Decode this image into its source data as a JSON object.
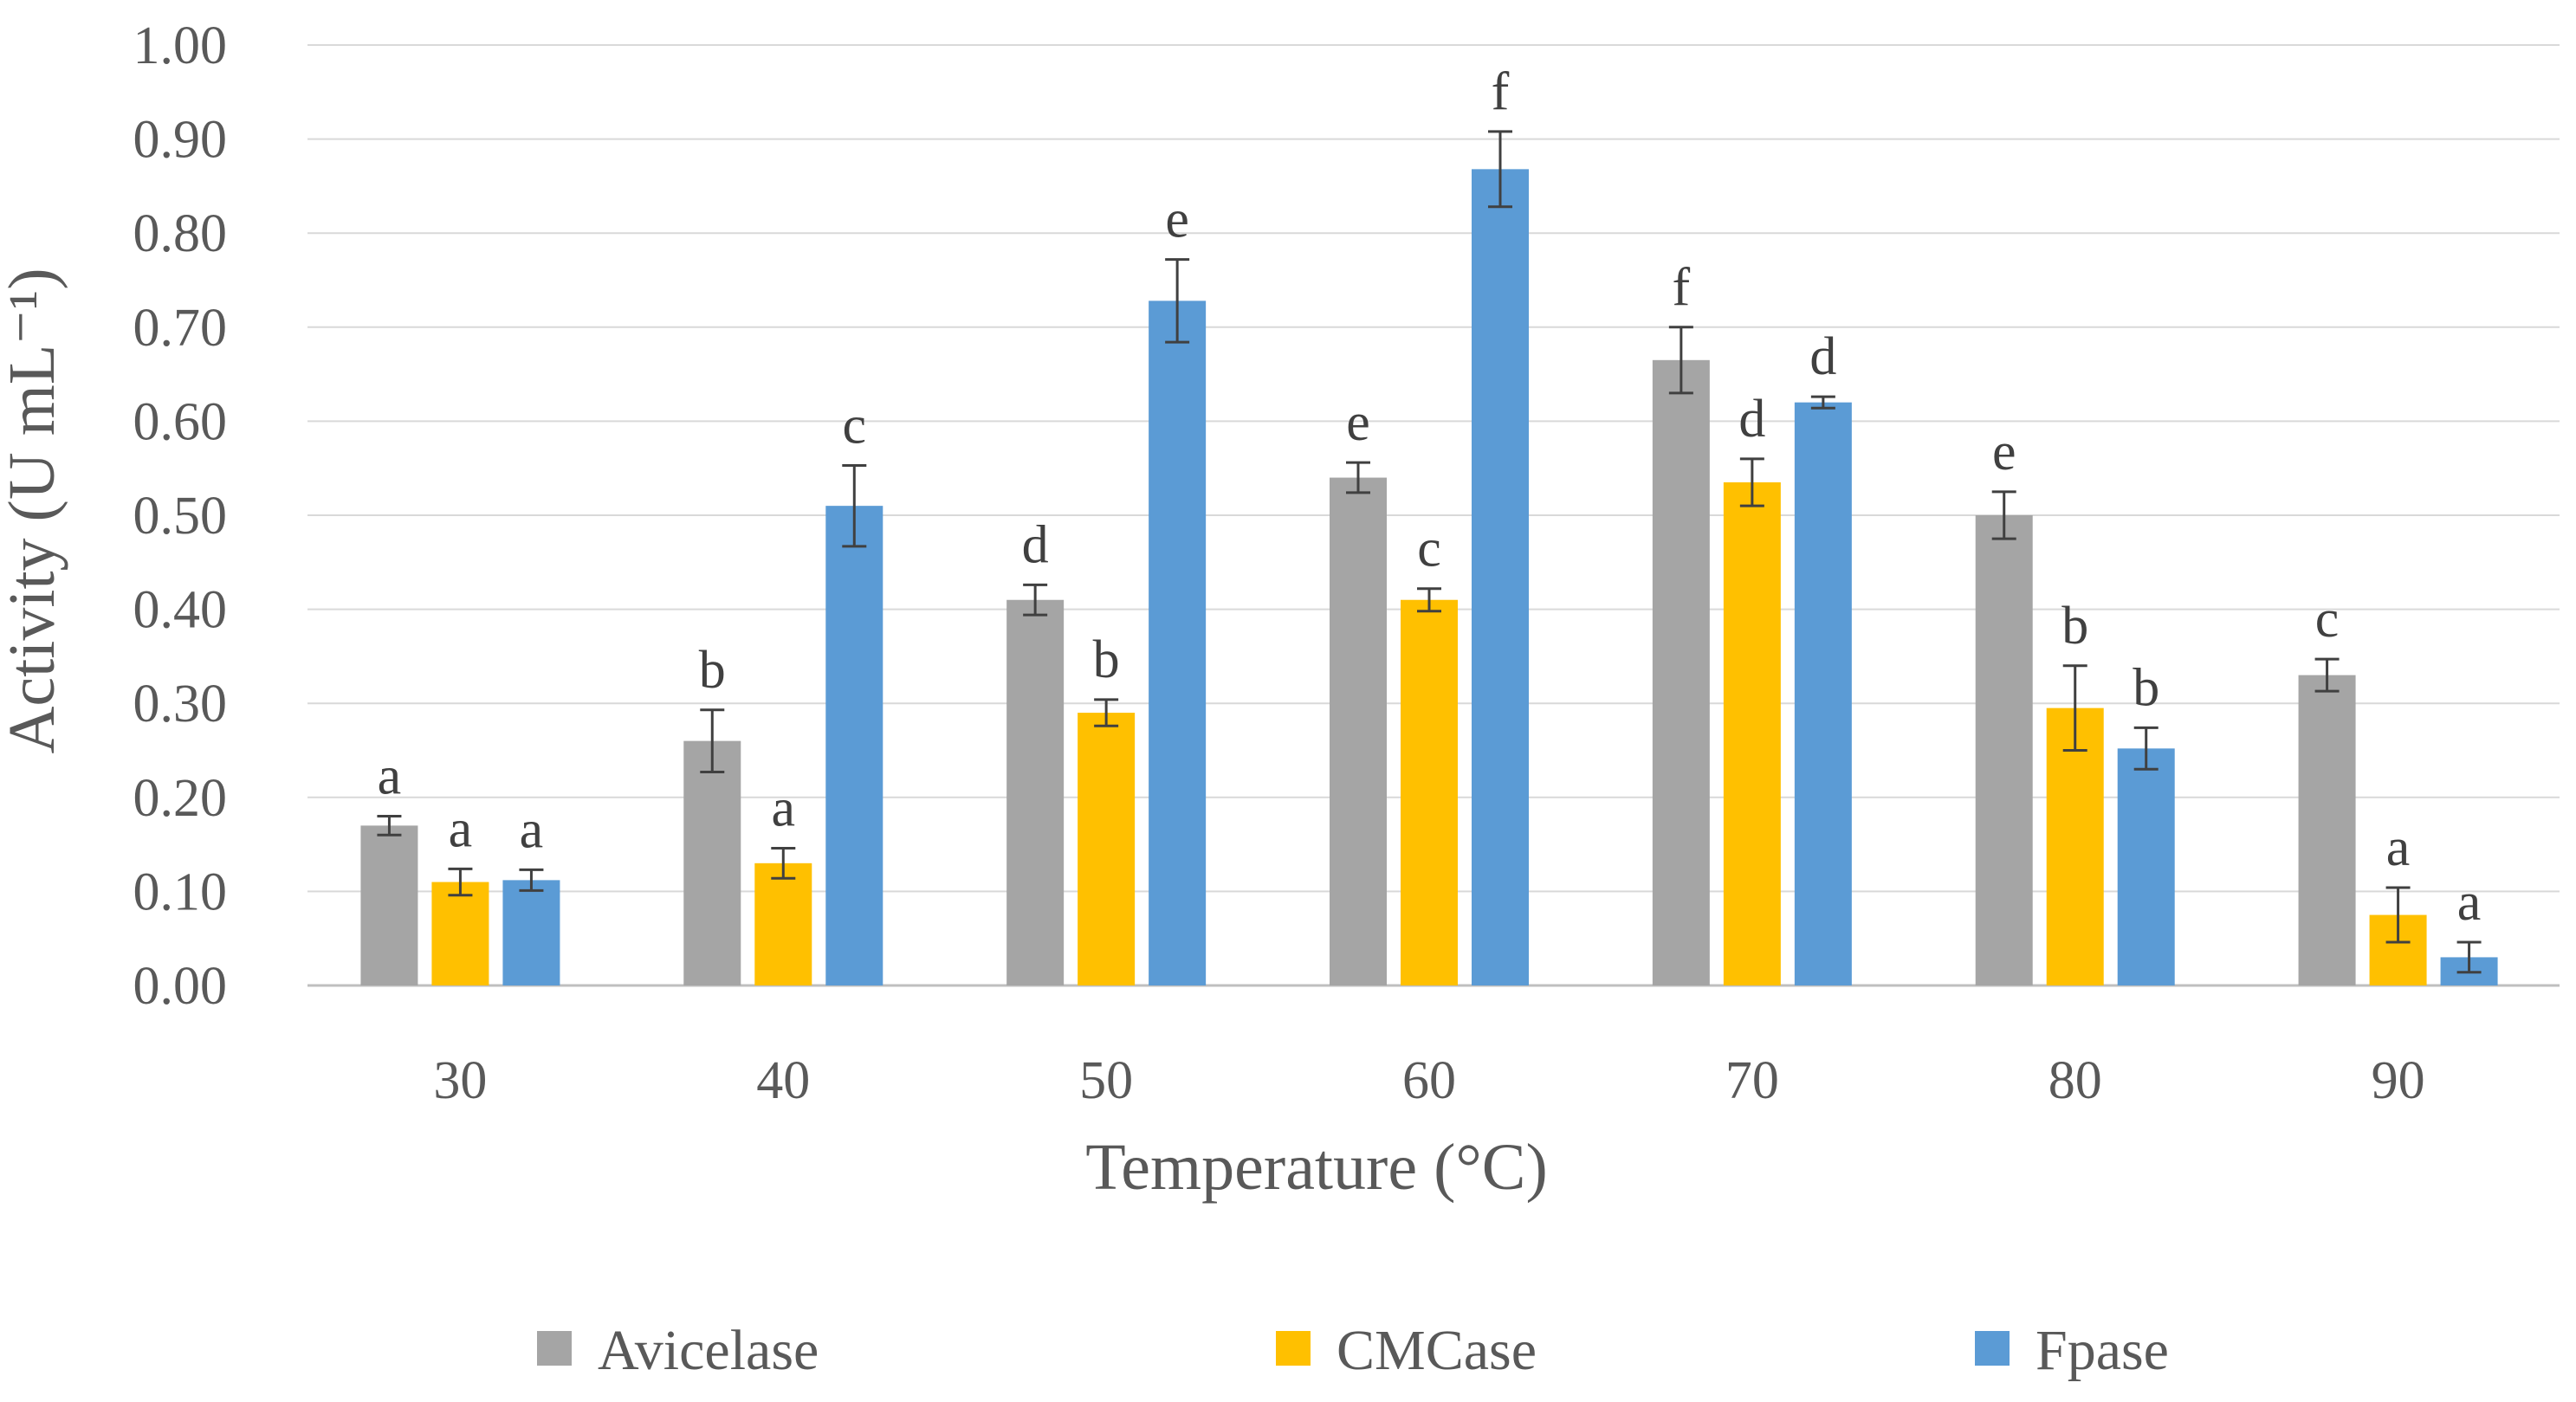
{
  "chart_data": {
    "type": "bar",
    "title": "",
    "xlabel": "Temperature (°C)",
    "ylabel": "Activity (U mL⁻¹)",
    "categories": [
      "30",
      "40",
      "50",
      "60",
      "70",
      "80",
      "90"
    ],
    "ylim": [
      0,
      1.0
    ],
    "ytick_step": 0.1,
    "ytick_labels": [
      "0.00",
      "0.10",
      "0.20",
      "0.30",
      "0.40",
      "0.50",
      "0.60",
      "0.70",
      "0.80",
      "0.90",
      "1.00"
    ],
    "grid": true,
    "legend_position": "bottom",
    "series": [
      {
        "name": "Avicelase",
        "color": "#A5A5A5",
        "values": [
          0.17,
          0.26,
          0.41,
          0.54,
          0.665,
          0.5,
          0.33
        ],
        "errors": [
          0.01,
          0.033,
          0.016,
          0.016,
          0.035,
          0.025,
          0.017
        ],
        "letters": [
          "a",
          "b",
          "d",
          "e",
          "f",
          "e",
          "c"
        ]
      },
      {
        "name": "CMCase",
        "color": "#FFC000",
        "values": [
          0.11,
          0.13,
          0.29,
          0.41,
          0.535,
          0.295,
          0.075
        ],
        "errors": [
          0.014,
          0.016,
          0.014,
          0.012,
          0.025,
          0.045,
          0.029
        ],
        "letters": [
          "a",
          "a",
          "b",
          "c",
          "d",
          "b",
          "a"
        ]
      },
      {
        "name": "Fpase",
        "color": "#5B9BD5",
        "values": [
          0.112,
          0.51,
          0.728,
          0.868,
          0.62,
          0.252,
          0.03
        ],
        "errors": [
          0.011,
          0.043,
          0.044,
          0.04,
          0.006,
          0.022,
          0.016
        ],
        "letters": [
          "a",
          "c",
          "e",
          "f",
          "d",
          "b",
          "a"
        ]
      }
    ]
  }
}
